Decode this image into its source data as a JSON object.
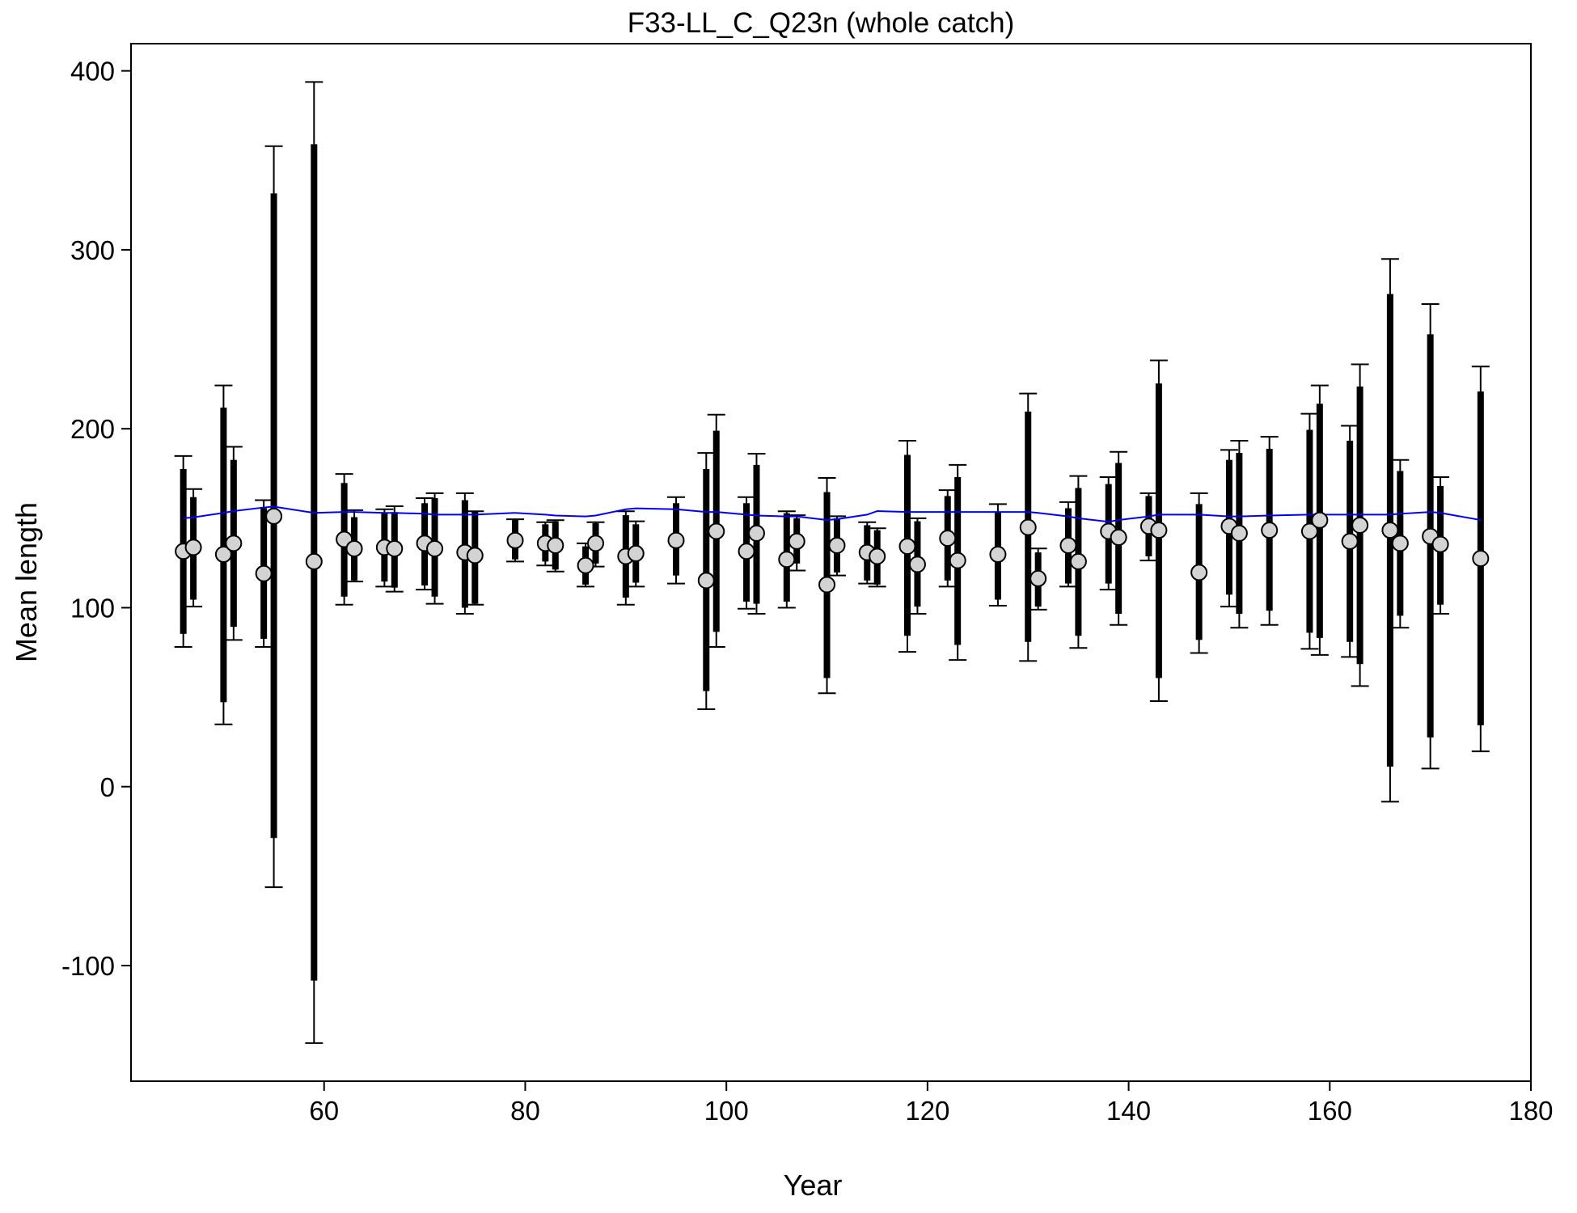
{
  "chart_data": {
    "type": "errorbar",
    "title": "F33-LL_C_Q23n (whole catch)",
    "x_label": "Year",
    "y_label": "Mean length",
    "x": [
      46,
      47,
      50,
      51,
      54,
      55,
      59,
      62,
      63,
      66,
      67,
      70,
      71,
      74,
      75,
      79,
      82,
      83,
      86,
      87,
      90,
      91,
      95,
      98,
      99,
      102,
      103,
      106,
      107,
      110,
      111,
      114,
      115,
      118,
      119,
      122,
      123,
      127,
      130,
      131,
      134,
      135,
      138,
      139,
      142,
      143,
      147,
      150,
      151,
      154,
      158,
      159,
      162,
      163,
      166,
      167,
      170,
      171,
      175
    ],
    "values": [
      131.5,
      133.7,
      129.8,
      136,
      119.1,
      151.1,
      125.8,
      138.2,
      133,
      133.7,
      133,
      136,
      133,
      130.9,
      129.2,
      137.6,
      136,
      134.8,
      123.6,
      136,
      128.7,
      130.3,
      137.6,
      115.2,
      142.7,
      131.5,
      141.6,
      127,
      137.1,
      112.9,
      134.8,
      130.9,
      128.7,
      134.3,
      124.2,
      138.8,
      126.4,
      129.8,
      144.9,
      116.3,
      134.8,
      125.8,
      142.7,
      139.3,
      145.5,
      143.3,
      119.7,
      145.5,
      141.6,
      143.3,
      142.7,
      148.9,
      137.1,
      146.1,
      143.3,
      136,
      139.9,
      135.4,
      127.5
    ],
    "inner_low": [
      85.4,
      104.5,
      47.2,
      89.3,
      82.6,
      -28.7,
      -108.4,
      106.2,
      115.2,
      114.6,
      111.2,
      112.4,
      106.2,
      100,
      102.2,
      127,
      125.8,
      121.3,
      112.9,
      124.7,
      105.6,
      114,
      118,
      53.4,
      86.5,
      103.4,
      102.2,
      103.4,
      124.7,
      60.7,
      119.7,
      115.2,
      112.9,
      84.3,
      100.6,
      115.2,
      79.2,
      104.5,
      80.9,
      100.6,
      113.5,
      84.3,
      113.5,
      96.6,
      128.7,
      60.7,
      82,
      107.3,
      96.6,
      98.3,
      86,
      83.1,
      80.9,
      68.5,
      11.2,
      95.5,
      27.5,
      101.7,
      34.3
    ],
    "inner_high": [
      177.5,
      161.8,
      211.8,
      182.6,
      155.6,
      331.5,
      359,
      169.7,
      150.6,
      152.8,
      153.4,
      158.4,
      161.2,
      160.1,
      153.9,
      149.4,
      146.6,
      148.3,
      134.3,
      147.2,
      151.7,
      146.6,
      158.4,
      177.5,
      198.9,
      158.4,
      179.8,
      152.8,
      150,
      164.6,
      150,
      146.1,
      143.3,
      185.4,
      148.3,
      162.4,
      173,
      153.4,
      209.6,
      130.9,
      155.6,
      166.9,
      169.1,
      180.9,
      162.4,
      225.3,
      157.9,
      182.6,
      186.5,
      188.8,
      199.4,
      214,
      193.3,
      223.6,
      275.3,
      176.4,
      252.8,
      168,
      220.8
    ],
    "outer_low": [
      78.1,
      100.6,
      34.8,
      82,
      78.1,
      -56.2,
      -143.3,
      101.7,
      114.6,
      111.8,
      109,
      110.1,
      102.2,
      96.6,
      101.7,
      125.8,
      123.6,
      120.2,
      111.8,
      123,
      101.7,
      111.8,
      113.5,
      43.3,
      78.1,
      99.4,
      96.6,
      100,
      120.8,
      52.2,
      118,
      113.5,
      111.8,
      75.3,
      96.6,
      111.8,
      70.8,
      101.1,
      70.2,
      98.9,
      111.8,
      77.5,
      110.1,
      90.4,
      126.4,
      47.8,
      74.7,
      100.6,
      88.8,
      90.4,
      77,
      73.6,
      72.5,
      56.2,
      -8.4,
      88.8,
      10.1,
      96.6,
      19.7
    ],
    "outer_high": [
      184.8,
      166.3,
      224.2,
      189.9,
      160.1,
      357.9,
      393.8,
      174.7,
      154.5,
      155,
      156.7,
      161.2,
      164,
      164,
      153.9,
      149.4,
      147.8,
      148.9,
      136,
      147.8,
      153.9,
      148.3,
      161.8,
      186.5,
      207.9,
      161.8,
      186,
      153.9,
      151.7,
      172.5,
      151.1,
      147.8,
      144.4,
      193.3,
      150,
      165.7,
      179.8,
      157.9,
      219.7,
      133.1,
      159,
      173.6,
      173,
      187.1,
      164,
      238.2,
      164,
      188.2,
      193.3,
      195.5,
      208.4,
      224.2,
      201.7,
      236,
      294.9,
      182.6,
      269.7,
      173,
      234.8
    ],
    "expected": [
      150,
      150.5,
      153,
      154,
      156,
      156.5,
      153,
      153.5,
      153.5,
      153,
      153,
      152.5,
      152,
      152,
      152,
      153,
      152,
      151.5,
      151,
      151.5,
      155,
      155.5,
      155,
      153.5,
      153.5,
      152,
      151.5,
      151,
      151,
      149,
      149.5,
      152,
      154,
      153.5,
      153.5,
      153.5,
      153.5,
      153.5,
      153.5,
      153,
      151,
      150,
      148,
      149,
      151,
      152,
      152,
      151,
      151,
      151.5,
      152,
      152,
      152,
      152,
      152,
      152.5,
      153.5,
      153,
      149
    ],
    "color": "#d3d3d3",
    "line_color": "#0000ff",
    "bar_color": "#000000",
    "xlim": [
      40.8,
      180
    ],
    "ylim": [
      -164.6,
      415.2
    ],
    "xticks": [
      60,
      80,
      100,
      120,
      140,
      160,
      180
    ],
    "yticks": [
      -100,
      0,
      100,
      200,
      300,
      400
    ]
  }
}
